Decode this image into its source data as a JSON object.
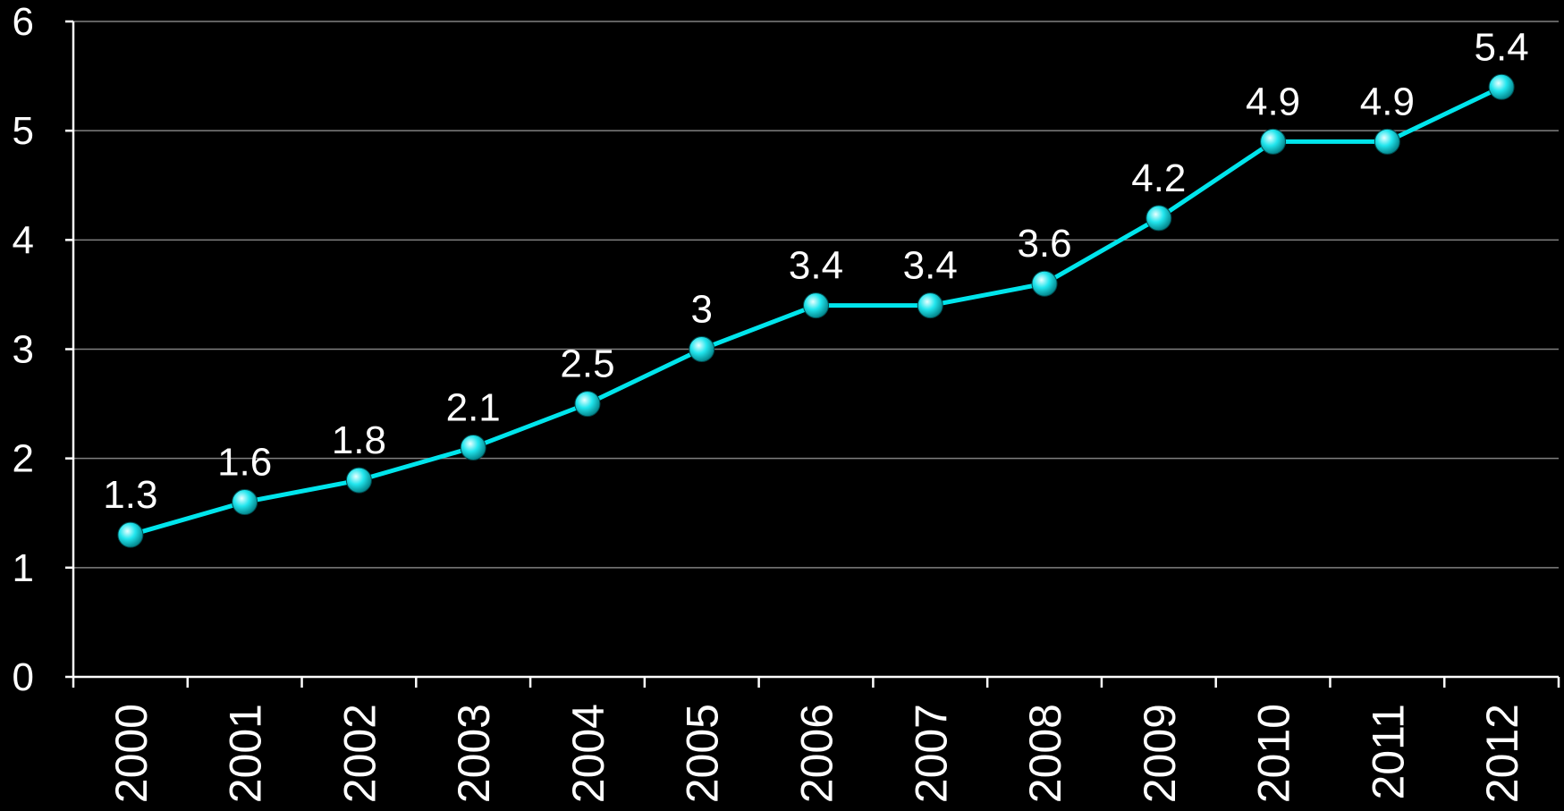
{
  "chart_data": {
    "type": "line",
    "title": "",
    "xlabel": "",
    "ylabel": "",
    "categories": [
      "2000",
      "2001",
      "2002",
      "2003",
      "2004",
      "2005",
      "2006",
      "2007",
      "2008",
      "2009",
      "2010",
      "2011",
      "2012"
    ],
    "series": [
      {
        "values": [
          1.3,
          1.6,
          1.8,
          2.1,
          2.5,
          3,
          3.4,
          3.4,
          3.6,
          4.2,
          4.9,
          4.9,
          5.4
        ]
      }
    ],
    "data_labels": [
      "1.3",
      "1.6",
      "1.8",
      "2.1",
      "2.5",
      "3",
      "3.4",
      "3.4",
      "3.6",
      "4.2",
      "4.9",
      "4.9",
      "5.4"
    ],
    "ylim": [
      0,
      6
    ],
    "yticks": [
      "0",
      "1",
      "2",
      "3",
      "4",
      "5",
      "6"
    ],
    "grid": true,
    "legend": "none",
    "colors": {
      "background": "#000000",
      "line": "#00e5ec",
      "marker": "#00e5ec",
      "gridline": "#808080",
      "axis": "#ffffff",
      "text": "#ffffff"
    }
  }
}
